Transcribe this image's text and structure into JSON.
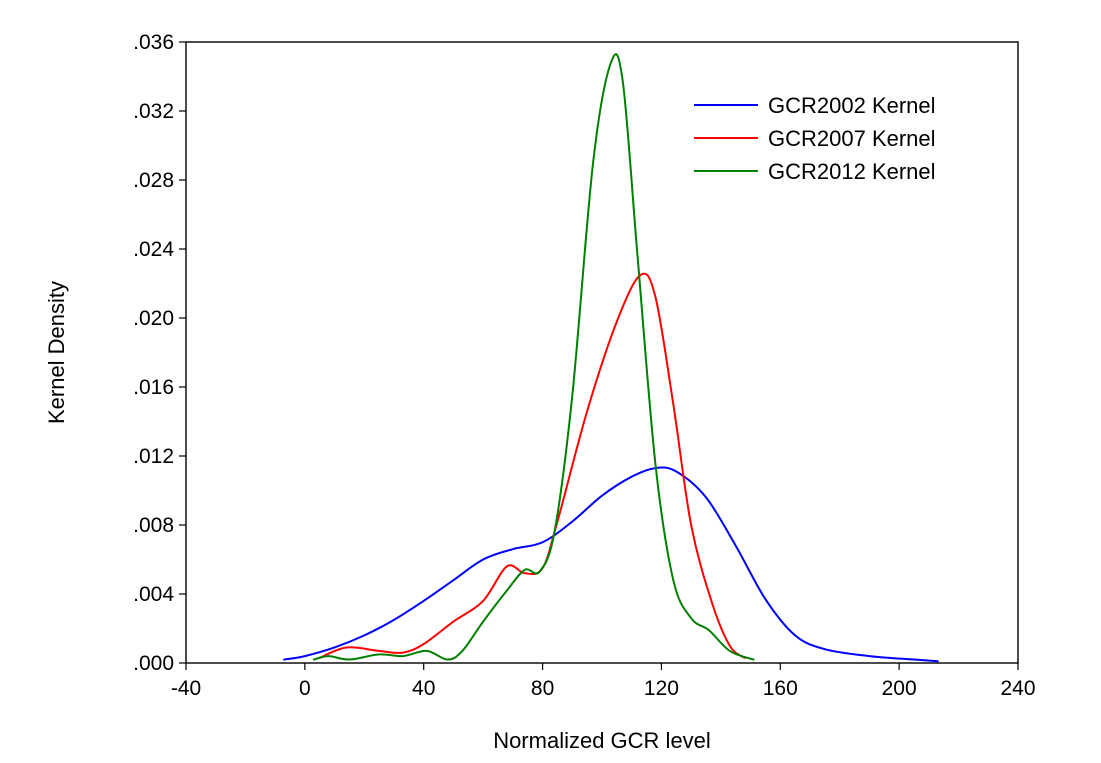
{
  "chart_data": {
    "type": "line",
    "title": "",
    "xlabel": "Normalized GCR level",
    "ylabel": "Kernel Density",
    "xlim": [
      -40,
      240
    ],
    "ylim": [
      0,
      0.036
    ],
    "x_ticks": [
      -40,
      0,
      40,
      80,
      120,
      160,
      200,
      240
    ],
    "x_tick_labels": [
      "-40",
      "0",
      "40",
      "80",
      "120",
      "160",
      "200",
      "240"
    ],
    "y_ticks": [
      0,
      0.004,
      0.008,
      0.012,
      0.016,
      0.02,
      0.024,
      0.028,
      0.032,
      0.036
    ],
    "y_tick_labels": [
      ".000",
      ".004",
      ".008",
      ".012",
      ".016",
      ".020",
      ".024",
      ".028",
      ".032",
      ".036"
    ],
    "grid": false,
    "legend_position": "top-right",
    "series": [
      {
        "name": "GCR2002 Kernel",
        "color": "#0000ff",
        "points": [
          [
            -7,
            0.0002
          ],
          [
            0,
            0.0004
          ],
          [
            10,
            0.0009
          ],
          [
            20,
            0.0016
          ],
          [
            30,
            0.0025
          ],
          [
            40,
            0.0036
          ],
          [
            50,
            0.0048
          ],
          [
            60,
            0.006
          ],
          [
            70,
            0.0066
          ],
          [
            80,
            0.007
          ],
          [
            90,
            0.0082
          ],
          [
            100,
            0.0097
          ],
          [
            110,
            0.0108
          ],
          [
            118,
            0.0113
          ],
          [
            125,
            0.0111
          ],
          [
            135,
            0.0096
          ],
          [
            145,
            0.0068
          ],
          [
            155,
            0.0037
          ],
          [
            165,
            0.0016
          ],
          [
            175,
            0.0008
          ],
          [
            190,
            0.0004
          ],
          [
            205,
            0.0002
          ],
          [
            213,
            0.0001
          ]
        ]
      },
      {
        "name": "GCR2007 Kernel",
        "color": "#ff0000",
        "points": [
          [
            5,
            0.0003
          ],
          [
            14,
            0.0009
          ],
          [
            25,
            0.0007
          ],
          [
            33,
            0.0006
          ],
          [
            40,
            0.0011
          ],
          [
            50,
            0.0024
          ],
          [
            60,
            0.0036
          ],
          [
            68,
            0.0056
          ],
          [
            74,
            0.0052
          ],
          [
            80,
            0.0055
          ],
          [
            85,
            0.0082
          ],
          [
            95,
            0.0146
          ],
          [
            105,
            0.0198
          ],
          [
            113,
            0.0225
          ],
          [
            118,
            0.0212
          ],
          [
            124,
            0.015
          ],
          [
            130,
            0.008
          ],
          [
            137,
            0.0035
          ],
          [
            143,
            0.001
          ],
          [
            148,
            0.0003
          ]
        ]
      },
      {
        "name": "GCR2012 Kernel",
        "color": "#008000",
        "points": [
          [
            3,
            0.0002
          ],
          [
            8,
            0.0004
          ],
          [
            15,
            0.0002
          ],
          [
            25,
            0.0005
          ],
          [
            33,
            0.0004
          ],
          [
            41,
            0.0007
          ],
          [
            48,
            0.0002
          ],
          [
            53,
            0.0007
          ],
          [
            60,
            0.0024
          ],
          [
            68,
            0.0042
          ],
          [
            74,
            0.0054
          ],
          [
            79,
            0.0053
          ],
          [
            84,
            0.0076
          ],
          [
            90,
            0.0155
          ],
          [
            97,
            0.029
          ],
          [
            103,
            0.0348
          ],
          [
            107,
            0.0337
          ],
          [
            112,
            0.0235
          ],
          [
            118,
            0.0115
          ],
          [
            124,
            0.0048
          ],
          [
            130,
            0.0026
          ],
          [
            136,
            0.0019
          ],
          [
            143,
            0.0007
          ],
          [
            151,
            0.0002
          ]
        ]
      }
    ]
  }
}
